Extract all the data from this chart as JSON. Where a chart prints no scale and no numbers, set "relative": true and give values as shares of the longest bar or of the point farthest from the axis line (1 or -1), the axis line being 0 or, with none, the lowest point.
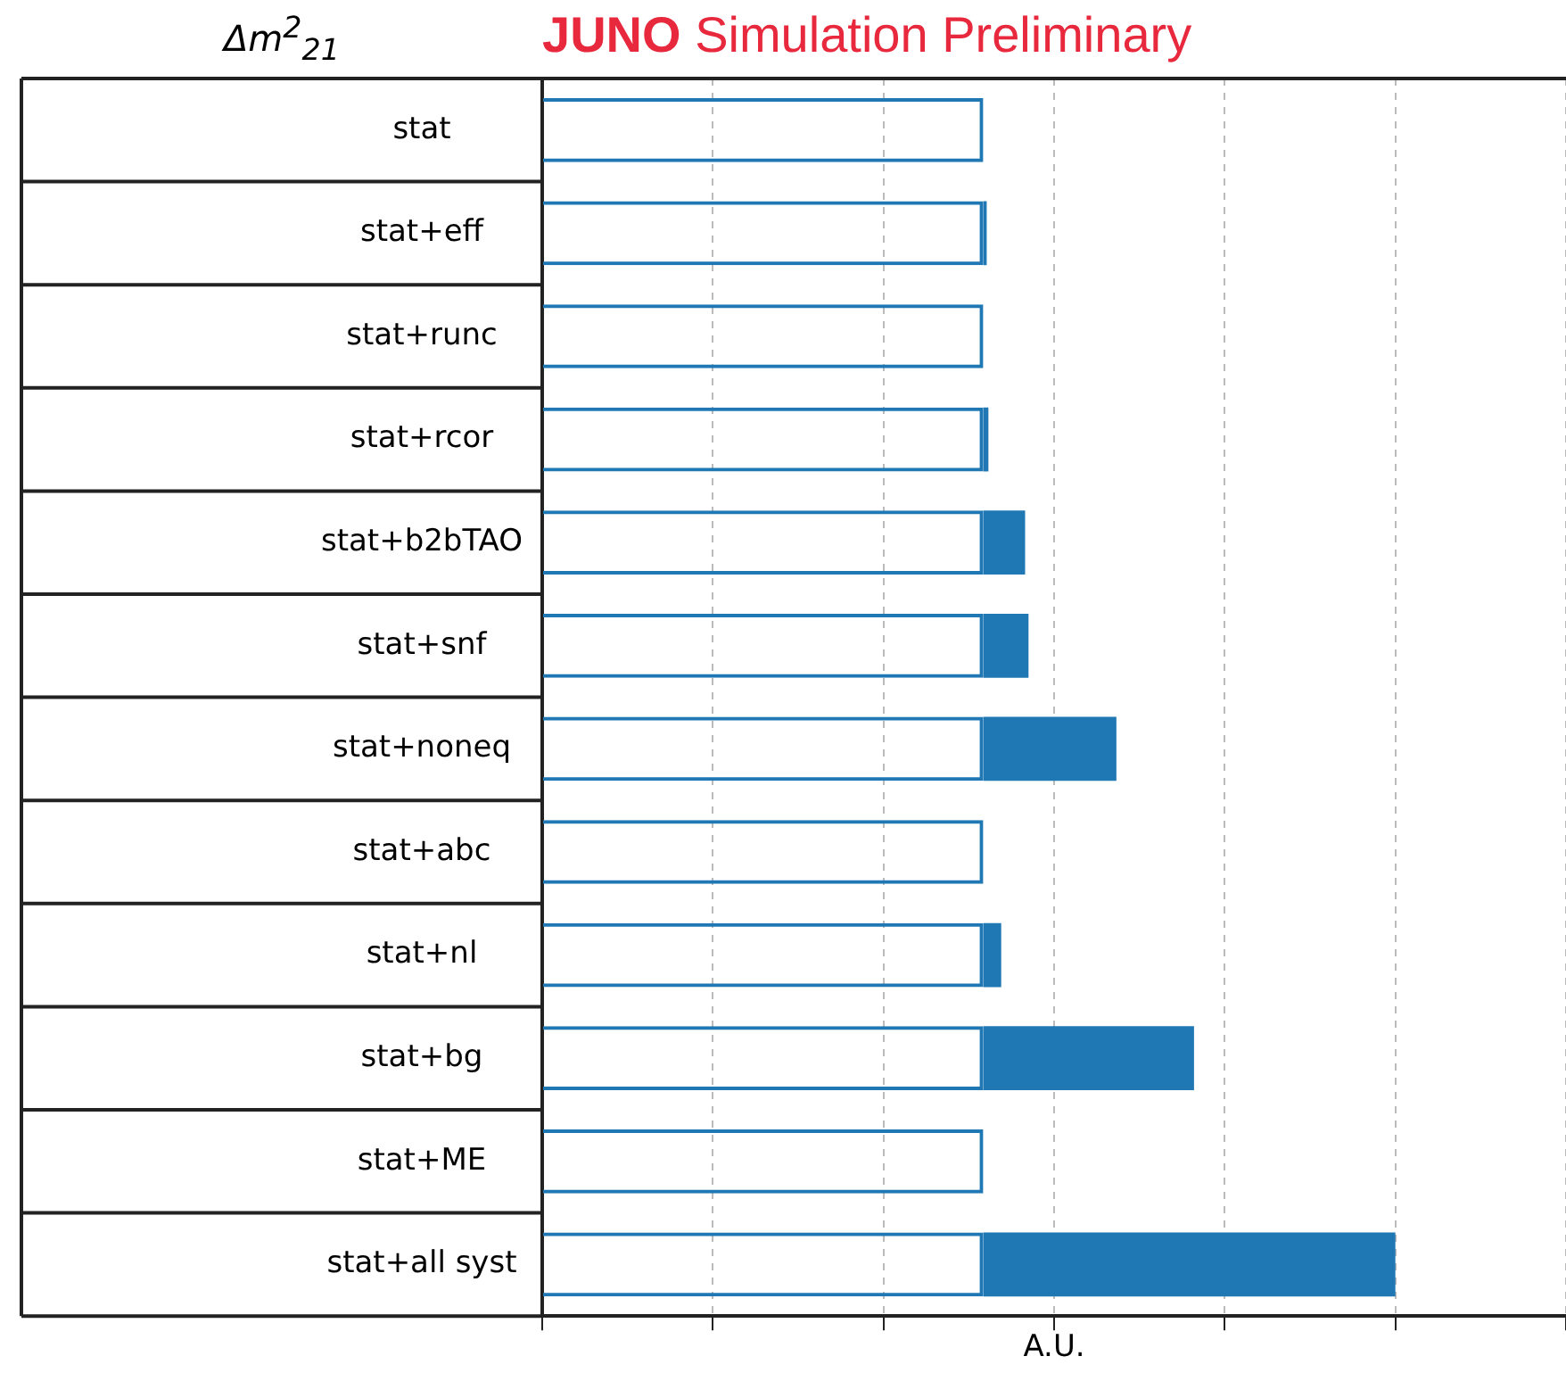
{
  "chart_data": {
    "type": "bar",
    "orientation": "horizontal",
    "stacked": true,
    "relative": true,
    "title": "JUNO Simulation Preliminary",
    "ylabel": "Δm$^{2}$$_{21}$",
    "xlabel": "A.U.",
    "categories": [
      "stat",
      "stat+eff",
      "stat+runc",
      "stat+rcor",
      "stat+b2bTAO",
      "stat+snf",
      "stat+noneq",
      "stat+abc",
      "stat+nl",
      "stat+bg",
      "stat+ME",
      "stat+all syst"
    ],
    "series": [
      {
        "color": "#1f77b4",
        "values": [
          0.517,
          0.517,
          0.517,
          0.517,
          0.517,
          0.517,
          0.517,
          0.517,
          0.517,
          0.517,
          0.517,
          0.517
        ]
      },
      {
        "color": "#1f77b4",
        "values": [
          0,
          0.004,
          0,
          0.006,
          0.049,
          0.053,
          0.156,
          0,
          0.021,
          0.247,
          0,
          0.483
        ]
      }
    ],
    "grid": "x",
    "legend": false
  }
}
